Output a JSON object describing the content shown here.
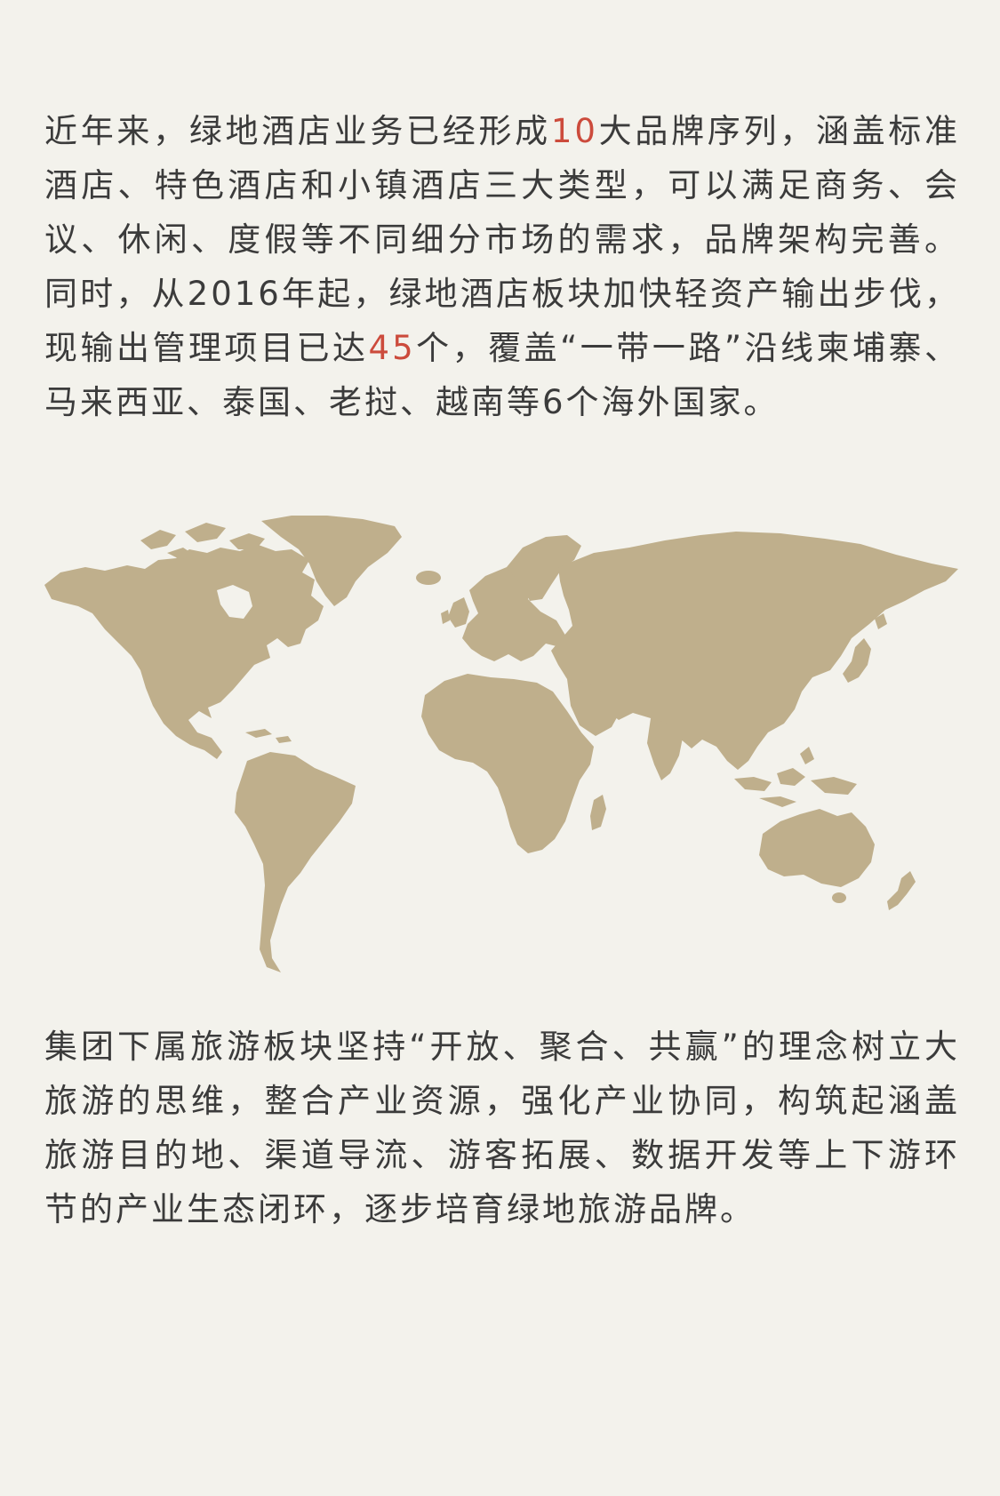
{
  "intro": {
    "part1": "近年来，绿地酒店业务已经形成",
    "brand_count": "10",
    "part2": "大品牌序列，涵盖标准酒店、特色酒店和小镇酒店三大类型，可以满足商务、会议、休闲、度假等不同细分市场的需求，品牌架构完善。同时，从2016年起，绿地酒店板块加快轻资产输出步伐，现输出管理项目已达",
    "project_count": "45",
    "part3": "个，覆盖“一带一路”沿线柬埔寨、马来西亚、泰国、老挝、越南等6个海外国家。"
  },
  "map": {
    "icon": "world-map-icon",
    "fill_color": "#bfaf8c"
  },
  "tourism": {
    "text": "集团下属旅游板块坚持“开放、聚合、共赢”的理念树立大旅游的思维，整合产业资源，强化产业协同，构筑起涵盖旅游目的地、渠道导流、游客拓展、数据开发等上下游环节的产业生态闭环，逐步培育绿地旅游品牌。"
  },
  "colors": {
    "background": "#f3f2ec",
    "text": "#3b3b3b",
    "highlight": "#cc4b3c"
  }
}
